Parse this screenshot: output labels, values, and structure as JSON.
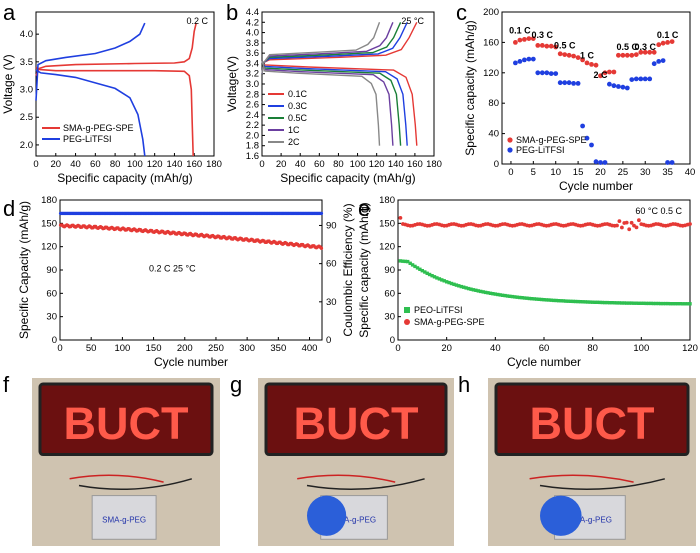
{
  "colors": {
    "red": "#e53935",
    "blue": "#1f3fe0",
    "green": "#2fbf50",
    "dark_green": "#1a7f37",
    "teal": "#2a9d8f",
    "purple": "#6b3fa0",
    "gray": "#888888"
  },
  "panels": {
    "a": {
      "letter": "a"
    },
    "b": {
      "letter": "b"
    },
    "c": {
      "letter": "c"
    },
    "d": {
      "letter": "d"
    },
    "e": {
      "letter": "e"
    },
    "f": {
      "letter": "f"
    },
    "g": {
      "letter": "g"
    },
    "h": {
      "letter": "h"
    }
  },
  "chart_data": [
    {
      "id": "a",
      "type": "line",
      "xlabel": "Specific capacity (mAh/g)",
      "ylabel": "Voltage (V)",
      "xlim": [
        0,
        180
      ],
      "ylim": [
        1.8,
        4.4
      ],
      "xticks": [
        0,
        20,
        40,
        60,
        80,
        100,
        120,
        140,
        160,
        180
      ],
      "yticks": [
        2.0,
        2.5,
        3.0,
        3.5,
        4.0
      ],
      "annotation": "0.2 C",
      "legend_position": "bottom-left",
      "series": [
        {
          "name": "SMA-g-PEG-SPE",
          "color_key": "red",
          "charge": [
            [
              0,
              3.25
            ],
            [
              3,
              3.38
            ],
            [
              10,
              3.42
            ],
            [
              40,
              3.45
            ],
            [
              100,
              3.47
            ],
            [
              140,
              3.48
            ],
            [
              150,
              3.5
            ],
            [
              155,
              3.56
            ],
            [
              158,
              3.75
            ],
            [
              160,
              4.05
            ],
            [
              162,
              4.2
            ]
          ],
          "discharge": [
            [
              0,
              3.4
            ],
            [
              4,
              3.36
            ],
            [
              20,
              3.34
            ],
            [
              60,
              3.34
            ],
            [
              120,
              3.34
            ],
            [
              150,
              3.33
            ],
            [
              155,
              3.25
            ],
            [
              157,
              3.0
            ],
            [
              158,
              2.4
            ],
            [
              159,
              1.8
            ]
          ]
        },
        {
          "name": "PEG-LiTFSI",
          "color_key": "blue",
          "charge": [
            [
              0,
              2.8
            ],
            [
              2,
              3.45
            ],
            [
              10,
              3.52
            ],
            [
              30,
              3.58
            ],
            [
              60,
              3.65
            ],
            [
              80,
              3.75
            ],
            [
              95,
              3.87
            ],
            [
              105,
              4.0
            ],
            [
              110,
              4.2
            ]
          ],
          "discharge": [
            [
              0,
              3.35
            ],
            [
              5,
              3.3
            ],
            [
              20,
              3.27
            ],
            [
              40,
              3.22
            ],
            [
              60,
              3.12
            ],
            [
              80,
              3.02
            ],
            [
              95,
              2.85
            ],
            [
              103,
              2.55
            ],
            [
              108,
              2.1
            ],
            [
              110,
              1.8
            ]
          ]
        }
      ]
    },
    {
      "id": "b",
      "type": "line",
      "xlabel": "Specific capacity (mAh/g)",
      "ylabel": "Voltage(V)",
      "xlim": [
        0,
        180
      ],
      "ylim": [
        1.6,
        4.4
      ],
      "xticks": [
        0,
        20,
        40,
        60,
        80,
        100,
        120,
        140,
        160,
        180
      ],
      "yticks": [
        1.6,
        1.8,
        2.0,
        2.2,
        2.4,
        2.6,
        2.8,
        3.0,
        3.2,
        3.4,
        3.6,
        3.8,
        4.0,
        4.2,
        4.4
      ],
      "annotation": "25 °C",
      "legend_position": "bottom-left",
      "series": [
        {
          "name": "0.1C",
          "color_key": "red",
          "capacity": 162
        },
        {
          "name": "0.3C",
          "color_key": "blue",
          "capacity": 152
        },
        {
          "name": "0.5C",
          "color_key": "dark_green",
          "capacity": 145
        },
        {
          "name": "1C",
          "color_key": "purple",
          "capacity": 137
        },
        {
          "name": "2C",
          "color_key": "gray",
          "capacity": 123
        }
      ]
    },
    {
      "id": "c",
      "type": "scatter",
      "xlabel": "Cycle number",
      "ylabel": "Specific capacity (mAh/g)",
      "xlim": [
        -2,
        40
      ],
      "ylim": [
        0,
        200
      ],
      "xticks": [
        0,
        5,
        10,
        15,
        20,
        25,
        30,
        35,
        40
      ],
      "yticks": [
        0,
        40,
        80,
        120,
        160,
        200
      ],
      "rate_labels": [
        {
          "text": "0.1 C",
          "x": 2,
          "y": 172
        },
        {
          "text": "0.3 C",
          "x": 7,
          "y": 166
        },
        {
          "text": "0.5 C",
          "x": 12,
          "y": 152
        },
        {
          "text": "1 C",
          "x": 17,
          "y": 139
        },
        {
          "text": "2 C",
          "x": 20,
          "y": 113
        },
        {
          "text": "0.5 C",
          "x": 26,
          "y": 150
        },
        {
          "text": "0.3 C",
          "x": 30,
          "y": 150
        },
        {
          "text": "0.1 C",
          "x": 35,
          "y": 166
        }
      ],
      "legend_position": "bottom-left",
      "series": [
        {
          "name": "SMA-g-PEG-SPE",
          "color_key": "red",
          "x": [
            1,
            2,
            3,
            4,
            5,
            6,
            7,
            8,
            9,
            10,
            11,
            12,
            13,
            14,
            15,
            16,
            17,
            18,
            19,
            20,
            21,
            22,
            23,
            24,
            25,
            26,
            27,
            28,
            29,
            30,
            31,
            32,
            33,
            34,
            35,
            36
          ],
          "y": [
            160,
            163,
            164,
            165,
            165,
            156,
            156,
            155,
            155,
            154,
            145,
            144,
            143,
            142,
            140,
            137,
            133,
            131,
            130,
            116,
            120,
            121,
            121,
            143,
            143,
            143,
            143,
            144,
            147,
            147,
            147,
            147,
            157,
            159,
            160,
            161
          ]
        },
        {
          "name": "PEG-LiTFSI",
          "color_key": "blue",
          "x": [
            1,
            2,
            3,
            4,
            5,
            6,
            7,
            8,
            9,
            10,
            11,
            12,
            13,
            14,
            15,
            16,
            17,
            18,
            19,
            20,
            21,
            22,
            23,
            24,
            25,
            26,
            27,
            28,
            29,
            30,
            31,
            32,
            33,
            34,
            35,
            36
          ],
          "y": [
            133,
            135,
            137,
            138,
            138,
            120,
            120,
            120,
            119,
            119,
            107,
            107,
            107,
            106,
            106,
            50,
            34,
            25,
            3,
            2,
            2,
            105,
            103,
            102,
            101,
            100,
            111,
            112,
            112,
            112,
            112,
            132,
            135,
            136,
            2,
            2
          ]
        }
      ]
    },
    {
      "id": "d",
      "type": "scatter",
      "xlabel": "Cycle number",
      "ylabel": "Specific Capacity (mAh/g)",
      "y2label": "Coulombic Efficiency (%)",
      "xlim": [
        0,
        420
      ],
      "ylim": [
        0,
        180
      ],
      "y2lim": [
        0,
        110
      ],
      "xticks": [
        0,
        50,
        100,
        150,
        200,
        250,
        300,
        350,
        400
      ],
      "yticks": [
        0,
        30,
        60,
        90,
        120,
        150,
        180
      ],
      "y2ticks": [
        0,
        30,
        60,
        90
      ],
      "annotation": "0.2 C   25 °C",
      "series": [
        {
          "name": "Specific Capacity",
          "color_key": "red",
          "start": 147,
          "end": 119
        },
        {
          "name": "Coulombic Efficiency",
          "color_key": "blue",
          "value": 99.5
        }
      ]
    },
    {
      "id": "e",
      "type": "scatter",
      "xlabel": "Cycle number",
      "ylabel": "Specific capacity (mAh/g)",
      "xlim": [
        0,
        120
      ],
      "ylim": [
        0,
        180
      ],
      "xticks": [
        0,
        20,
        40,
        60,
        80,
        100,
        120
      ],
      "yticks": [
        0,
        30,
        60,
        90,
        120,
        150,
        180
      ],
      "annotation": "60 °C  0.5 C",
      "legend_position": "bottom-left",
      "series": [
        {
          "name": "PEO-LiTFSI",
          "color_key": "green",
          "start": 103,
          "end": 46
        },
        {
          "name": "SMA-g-PEG-SPE",
          "color_key": "red",
          "value": 148
        }
      ]
    }
  ],
  "photos": [
    {
      "id": "f",
      "sign": "BUCT",
      "pouch_text": "SMA-g-PEG"
    },
    {
      "id": "g",
      "sign": "BUCT",
      "pouch_text": "SMA-g-PEG"
    },
    {
      "id": "h",
      "sign": "BUCT",
      "pouch_text": "SMA-g-PEG"
    }
  ]
}
